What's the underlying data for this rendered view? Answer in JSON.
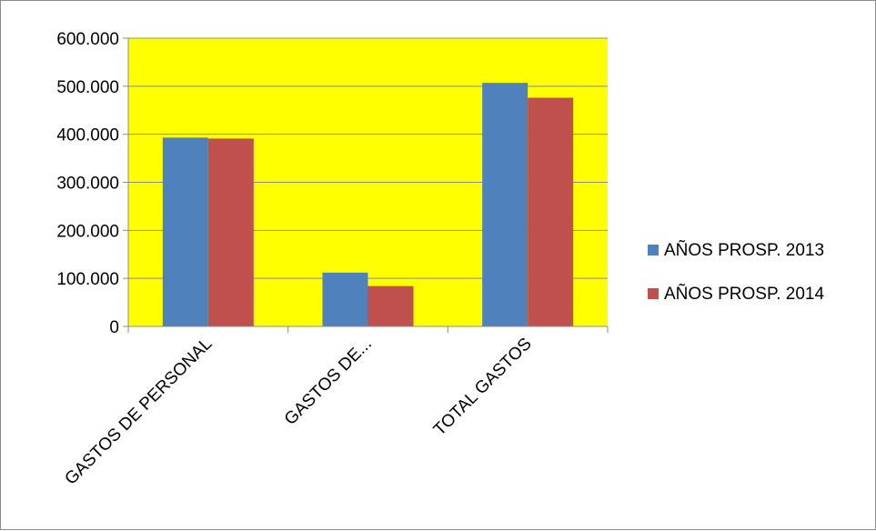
{
  "chart_data": {
    "type": "bar",
    "title": "",
    "xlabel": "",
    "ylabel": "",
    "categories": [
      "GASTOS DE PERSONAL",
      "GASTOS DE...",
      "TOTAL GASTOS"
    ],
    "series": [
      {
        "name": "AÑOS  PROSP. 2013",
        "color": "#4f81bd",
        "values": [
          393000,
          112000,
          507000
        ]
      },
      {
        "name": "AÑOS PROSP. 2014",
        "color": "#c0504d",
        "values": [
          391000,
          84000,
          476000
        ]
      }
    ],
    "ylim": [
      0,
      600000
    ],
    "yticks": [
      0,
      100000,
      200000,
      300000,
      400000,
      500000,
      600000
    ],
    "ytick_labels": [
      "0",
      "100.000",
      "200.000",
      "300.000",
      "400.000",
      "500.000",
      "600.000"
    ],
    "grid": true,
    "plot_background": "#ffff00",
    "legend_position": "right"
  }
}
